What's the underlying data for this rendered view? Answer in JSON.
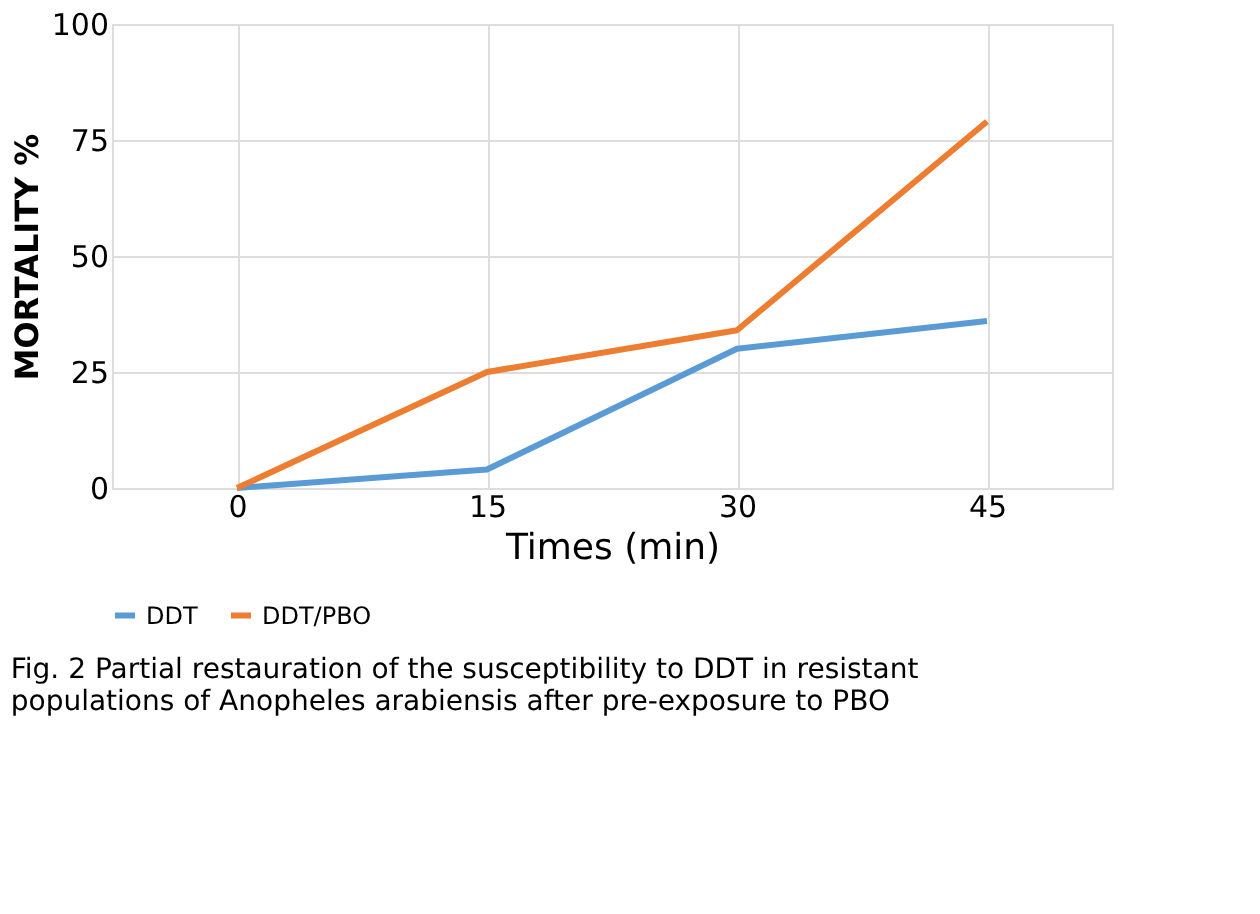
{
  "chart_data": {
    "type": "line",
    "xlabel": "Times (min)",
    "ylabel": "MORTALITY %",
    "categories": [
      "0",
      "15",
      "30",
      "45"
    ],
    "series": [
      {
        "name": "DDT",
        "color": "#5b9bd5",
        "values": [
          0,
          4,
          30,
          36
        ]
      },
      {
        "name": "DDT/PBO",
        "color": "#ed7d31",
        "values": [
          0,
          25,
          34,
          79
        ]
      }
    ],
    "ylim": [
      0,
      100
    ],
    "yticks": [
      0,
      25,
      50,
      75,
      100
    ],
    "grid": true,
    "legend": "bottom",
    "marker": "none",
    "line_style": "solid",
    "annotations": [
      "Fig. 2  Partial restauration of the susceptibility to DDT in resistant populations of Anopheles arabiensis after pre-exposure to PBO"
    ]
  }
}
